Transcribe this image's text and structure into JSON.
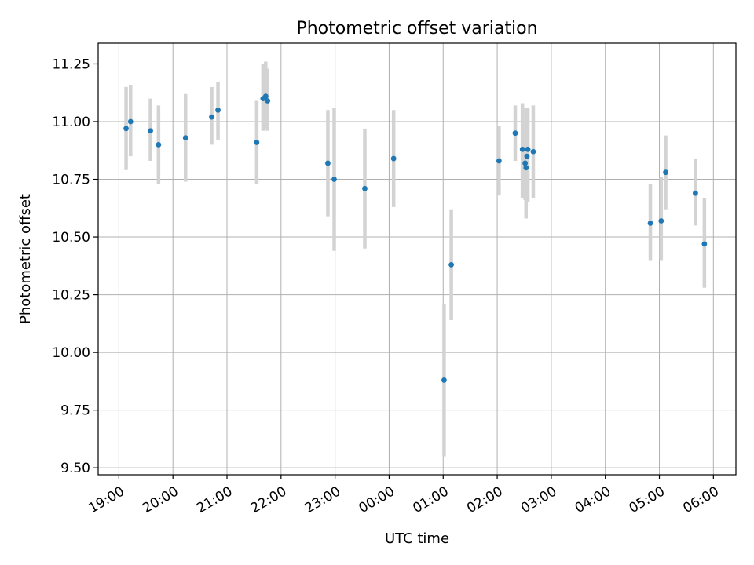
{
  "chart_data": {
    "type": "scatter",
    "title": "Photometric offset variation",
    "xlabel": "UTC time",
    "ylabel": "Photometric offset",
    "x_time_origin": "19:00",
    "x_range_minutes": [
      -23,
      685
    ],
    "ylim": [
      9.47,
      11.34
    ],
    "grid": true,
    "x_ticks": [
      {
        "label": "19:00",
        "minutes": 0
      },
      {
        "label": "20:00",
        "minutes": 60
      },
      {
        "label": "21:00",
        "minutes": 120
      },
      {
        "label": "22:00",
        "minutes": 180
      },
      {
        "label": "23:00",
        "minutes": 240
      },
      {
        "label": "00:00",
        "minutes": 300
      },
      {
        "label": "01:00",
        "minutes": 360
      },
      {
        "label": "02:00",
        "minutes": 420
      },
      {
        "label": "03:00",
        "minutes": 480
      },
      {
        "label": "04:00",
        "minutes": 540
      },
      {
        "label": "05:00",
        "minutes": 600
      },
      {
        "label": "06:00",
        "minutes": 660
      }
    ],
    "y_ticks": [
      "9.50",
      "9.75",
      "10.00",
      "10.25",
      "10.50",
      "10.75",
      "11.00",
      "11.25"
    ],
    "colors": {
      "points": "#1f77b4",
      "errorbars": "#d3d3d3",
      "grid": "#b0b0b0"
    },
    "points": [
      {
        "t": "19:08",
        "y": 10.97,
        "lo": 10.79,
        "hi": 11.15
      },
      {
        "t": "19:13",
        "y": 11.0,
        "lo": 10.85,
        "hi": 11.16
      },
      {
        "t": "19:35",
        "y": 10.96,
        "lo": 10.83,
        "hi": 11.1
      },
      {
        "t": "19:44",
        "y": 10.9,
        "lo": 10.73,
        "hi": 11.07
      },
      {
        "t": "20:14",
        "y": 10.93,
        "lo": 10.74,
        "hi": 11.12
      },
      {
        "t": "20:43",
        "y": 11.02,
        "lo": 10.9,
        "hi": 11.15
      },
      {
        "t": "20:50",
        "y": 11.05,
        "lo": 10.92,
        "hi": 11.17
      },
      {
        "t": "21:33",
        "y": 10.91,
        "lo": 10.73,
        "hi": 11.09
      },
      {
        "t": "21:40",
        "y": 11.1,
        "lo": 10.96,
        "hi": 11.25
      },
      {
        "t": "21:43",
        "y": 11.11,
        "lo": 10.97,
        "hi": 11.26
      },
      {
        "t": "21:45",
        "y": 11.09,
        "lo": 10.96,
        "hi": 11.23
      },
      {
        "t": "22:52",
        "y": 10.82,
        "lo": 10.59,
        "hi": 11.05
      },
      {
        "t": "22:59",
        "y": 10.75,
        "lo": 10.44,
        "hi": 11.06
      },
      {
        "t": "23:33",
        "y": 10.71,
        "lo": 10.45,
        "hi": 10.97
      },
      {
        "t": "00:05",
        "y": 10.84,
        "lo": 10.63,
        "hi": 11.05
      },
      {
        "t": "01:01",
        "y": 9.88,
        "lo": 9.55,
        "hi": 10.21
      },
      {
        "t": "01:09",
        "y": 10.38,
        "lo": 10.14,
        "hi": 10.62
      },
      {
        "t": "02:02",
        "y": 10.83,
        "lo": 10.68,
        "hi": 10.98
      },
      {
        "t": "02:20",
        "y": 10.95,
        "lo": 10.83,
        "hi": 11.07
      },
      {
        "t": "02:28",
        "y": 10.88,
        "lo": 10.67,
        "hi": 11.08
      },
      {
        "t": "02:31",
        "y": 10.82,
        "lo": 10.66,
        "hi": 10.99
      },
      {
        "t": "02:32",
        "y": 10.8,
        "lo": 10.58,
        "hi": 11.06
      },
      {
        "t": "02:33",
        "y": 10.85,
        "lo": 10.66,
        "hi": 11.04
      },
      {
        "t": "02:34",
        "y": 10.88,
        "lo": 10.65,
        "hi": 11.06
      },
      {
        "t": "02:40",
        "y": 10.87,
        "lo": 10.67,
        "hi": 11.07
      },
      {
        "t": "04:50",
        "y": 10.56,
        "lo": 10.4,
        "hi": 10.73
      },
      {
        "t": "05:02",
        "y": 10.57,
        "lo": 10.4,
        "hi": 10.76
      },
      {
        "t": "05:07",
        "y": 10.78,
        "lo": 10.62,
        "hi": 10.94
      },
      {
        "t": "05:40",
        "y": 10.69,
        "lo": 10.55,
        "hi": 10.84
      },
      {
        "t": "05:50",
        "y": 10.47,
        "lo": 10.28,
        "hi": 10.67
      }
    ]
  }
}
